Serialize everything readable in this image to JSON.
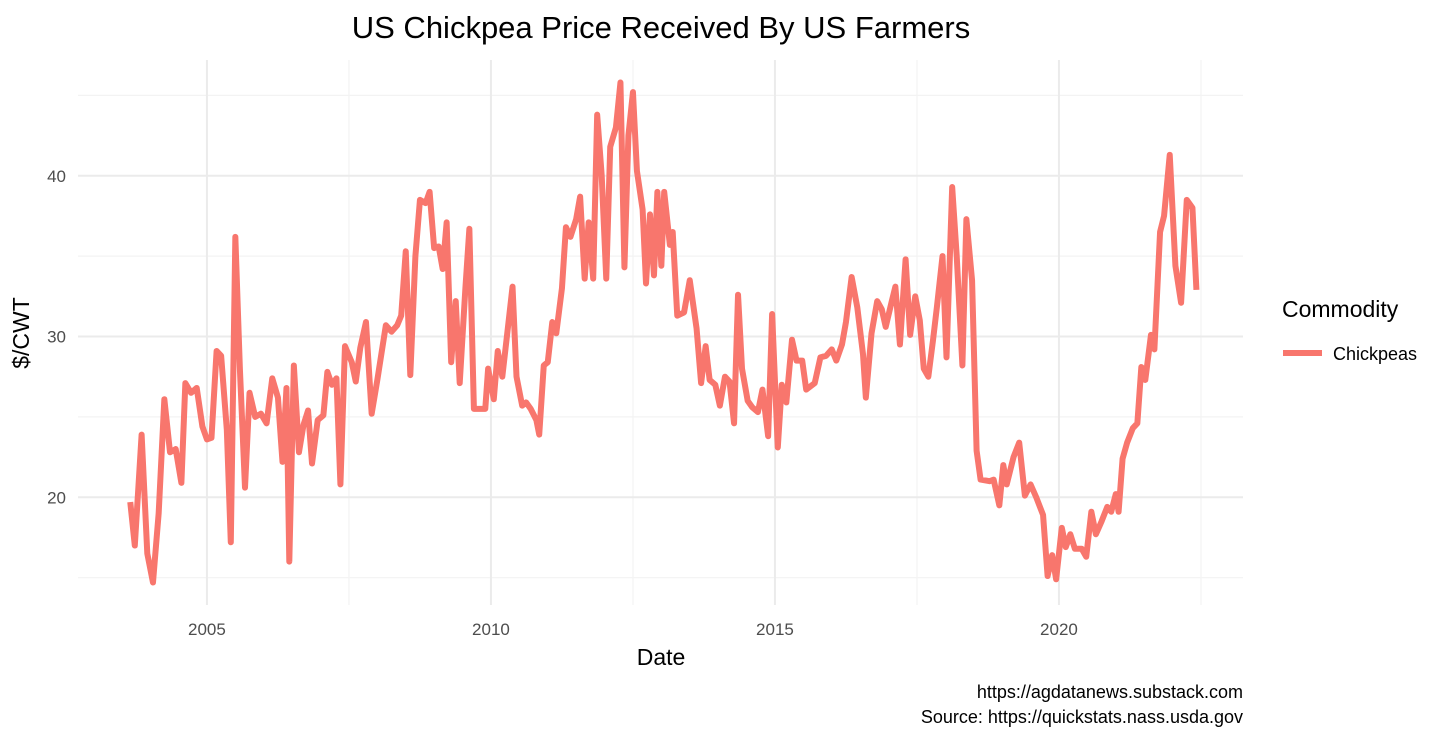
{
  "chart_data": {
    "type": "line",
    "title": "US Chickpea Price Received By US Farmers",
    "x_label": "Date",
    "y_label": "$/CWT",
    "legend_title": "Commodity",
    "caption": [
      "https://agdatanews.substack.com",
      "Source: https://quickstats.nass.usda.gov"
    ],
    "xlim": [
      2002.73,
      2023.24
    ],
    "xticks": [
      2005,
      2010,
      2015,
      2020
    ],
    "ylim": [
      13.3,
      47.2
    ],
    "yticks": [
      20,
      30,
      40
    ],
    "grid": true,
    "legend": "right",
    "x": [
      2003.65,
      2003.73,
      2003.85,
      2003.95,
      2004.05,
      2004.15,
      2004.25,
      2004.35,
      2004.45,
      2004.55,
      2004.62,
      2004.72,
      2004.82,
      2004.92,
      2005.0,
      2005.08,
      2005.17,
      2005.25,
      2005.35,
      2005.42,
      2005.5,
      2005.58,
      2005.67,
      2005.75,
      2005.85,
      2005.95,
      2006.05,
      2006.15,
      2006.25,
      2006.33,
      2006.4,
      2006.45,
      2006.53,
      2006.62,
      2006.7,
      2006.78,
      2006.85,
      2006.95,
      2007.05,
      2007.12,
      2007.2,
      2007.28,
      2007.35,
      2007.43,
      2007.55,
      2007.62,
      2007.7,
      2007.8,
      2007.9,
      2008.0,
      2008.15,
      2008.25,
      2008.35,
      2008.42,
      2008.5,
      2008.58,
      2008.67,
      2008.75,
      2008.85,
      2008.92,
      2009.0,
      2009.08,
      2009.15,
      2009.22,
      2009.3,
      2009.38,
      2009.45,
      2009.55,
      2009.62,
      2009.7,
      2009.8,
      2009.9,
      2009.95,
      2010.05,
      2010.12,
      2010.2,
      2010.3,
      2010.38,
      2010.45,
      2010.55,
      2010.62,
      2010.7,
      2010.8,
      2010.85,
      2010.93,
      2011.0,
      2011.08,
      2011.15,
      2011.25,
      2011.32,
      2011.4,
      2011.5,
      2011.57,
      2011.65,
      2011.72,
      2011.8,
      2011.87,
      2011.95,
      2012.03,
      2012.1,
      2012.2,
      2012.28,
      2012.35,
      2012.42,
      2012.5,
      2012.57,
      2012.67,
      2012.73,
      2012.8,
      2012.87,
      2012.93,
      2013.0,
      2013.05,
      2013.15,
      2013.2,
      2013.28,
      2013.4,
      2013.5,
      2013.62,
      2013.7,
      2013.78,
      2013.85,
      2013.95,
      2014.03,
      2014.12,
      2014.2,
      2014.28,
      2014.35,
      2014.42,
      2014.52,
      2014.6,
      2014.7,
      2014.78,
      2014.88,
      2014.95,
      2015.05,
      2015.12,
      2015.2,
      2015.3,
      2015.38,
      2015.48,
      2015.55,
      2015.7,
      2015.8,
      2015.9,
      2016.0,
      2016.08,
      2016.18,
      2016.25,
      2016.35,
      2016.45,
      2016.55,
      2016.6,
      2016.7,
      2016.8,
      2016.88,
      2016.95,
      2017.05,
      2017.12,
      2017.2,
      2017.3,
      2017.38,
      2017.47,
      2017.55,
      2017.62,
      2017.7,
      2017.78,
      2017.85,
      2017.95,
      2018.02,
      2018.12,
      2018.2,
      2018.3,
      2018.37,
      2018.47,
      2018.55,
      2018.62,
      2018.78,
      2018.85,
      2018.95,
      2019.02,
      2019.08,
      2019.2,
      2019.3,
      2019.4,
      2019.5,
      2019.6,
      2019.72,
      2019.8,
      2019.88,
      2019.95,
      2020.05,
      2020.12,
      2020.2,
      2020.28,
      2020.4,
      2020.48,
      2020.57,
      2020.65,
      2020.75,
      2020.85,
      2020.92,
      2021.0,
      2021.05,
      2021.12,
      2021.2,
      2021.3,
      2021.38,
      2021.45,
      2021.52,
      2021.62,
      2021.68,
      2021.78,
      2021.85,
      2021.95,
      2022.05,
      2022.15,
      2022.25,
      2022.35,
      2022.42
    ],
    "series": [
      {
        "name": "Chickpeas",
        "color": "#F8766D",
        "values": [
          19.7,
          17.0,
          23.9,
          16.5,
          14.7,
          19,
          26.1,
          22.8,
          23.0,
          20.9,
          27.1,
          26.5,
          26.8,
          24.4,
          23.6,
          23.7,
          29.1,
          28.8,
          24.2,
          17.2,
          36.2,
          28,
          20.6,
          26.5,
          25,
          25.2,
          24.6,
          27.4,
          26.2,
          22.2,
          26.8,
          16,
          28.2,
          22.8,
          24.5,
          25.4,
          22.1,
          24.8,
          25.1,
          27.8,
          27,
          27.4,
          20.8,
          29.4,
          28.4,
          27.2,
          29.3,
          30.9,
          25.2,
          27.3,
          30.7,
          30.3,
          30.7,
          31.3,
          35.3,
          27.6,
          35,
          38.5,
          38.3,
          39,
          35.5,
          35.6,
          34.2,
          37.1,
          28.4,
          32.2,
          27.1,
          33,
          36.7,
          25.5,
          25.5,
          25.5,
          28,
          26.1,
          29.1,
          27.5,
          30.6,
          33.1,
          27.5,
          25.7,
          25.9,
          25.5,
          24.8,
          23.9,
          28.2,
          28.4,
          30.9,
          30.2,
          33,
          36.8,
          36.2,
          37.3,
          38.7,
          33.6,
          37.1,
          33.6,
          43.8,
          40,
          33.6,
          41.8,
          43,
          45.8,
          34.3,
          42.5,
          45.2,
          40.3,
          37.9,
          33.3,
          37.6,
          33.8,
          39,
          34.4,
          39,
          35.7,
          36.5,
          31.3,
          31.5,
          33.5,
          30.5,
          27.1,
          29.4,
          27.3,
          27,
          25.7,
          27.5,
          27.2,
          24.6,
          32.6,
          28,
          26,
          25.6,
          25.3,
          26.7,
          23.8,
          31.4,
          23.1,
          27,
          25.9,
          29.8,
          28.5,
          28.5,
          26.7,
          27.1,
          28.7,
          28.8,
          29.2,
          28.5,
          29.5,
          30.9,
          33.7,
          31.8,
          28.9,
          26.2,
          30.2,
          32.2,
          31.7,
          30.6,
          32.1,
          33.1,
          29.5,
          34.8,
          30.1,
          32.5,
          31,
          28,
          27.5,
          29.7,
          31.8,
          35,
          28.7,
          39.3,
          35,
          28.2,
          37.3,
          33.5,
          22.9,
          21.1,
          21,
          21.1,
          19.5,
          22,
          20.8,
          22.5,
          23.4,
          20.1,
          20.8,
          20,
          18.9,
          15.1,
          16.4,
          14.9,
          18.1,
          16.9,
          17.7,
          16.8,
          16.8,
          16.3,
          19.1,
          17.7,
          18.5,
          19.4,
          19.1,
          20.2,
          19.1,
          22.4,
          23.4,
          24.3,
          24.6,
          28.1,
          27.3,
          30.1,
          29.2,
          36.5,
          37.5,
          41.3,
          34.4,
          32.1,
          38.5,
          38,
          32.9
        ]
      }
    ]
  }
}
